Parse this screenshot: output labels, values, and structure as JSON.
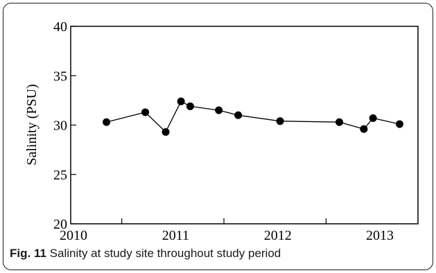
{
  "figure": {
    "caption_label": "Fig. 11",
    "caption_text": "Salinity at study site throughout study period"
  },
  "chart_data": {
    "type": "line",
    "title": "",
    "xlabel": "",
    "ylabel": "Salinity (PSU)",
    "ylim": [
      20,
      40
    ],
    "yticks": [
      20,
      25,
      30,
      35,
      40
    ],
    "xlim": [
      2010.0,
      2013.4
    ],
    "xtick_labels": [
      {
        "label": "2010",
        "x": 2010
      },
      {
        "label": "2011",
        "x": 2011
      },
      {
        "label": "2012",
        "x": 2012
      },
      {
        "label": "2013",
        "x": 2013
      }
    ],
    "grid": false,
    "marker": "filled-circle",
    "line_color": "#000000",
    "series": [
      {
        "x": [
          2010.35,
          2010.73,
          2010.93,
          2011.08,
          2011.17,
          2011.45,
          2011.64,
          2012.05,
          2012.63,
          2012.87,
          2012.96,
          2013.22
        ],
        "y": [
          30.3,
          31.3,
          29.3,
          32.4,
          31.9,
          31.5,
          31.0,
          30.4,
          30.3,
          29.6,
          30.7,
          30.1
        ]
      }
    ]
  }
}
